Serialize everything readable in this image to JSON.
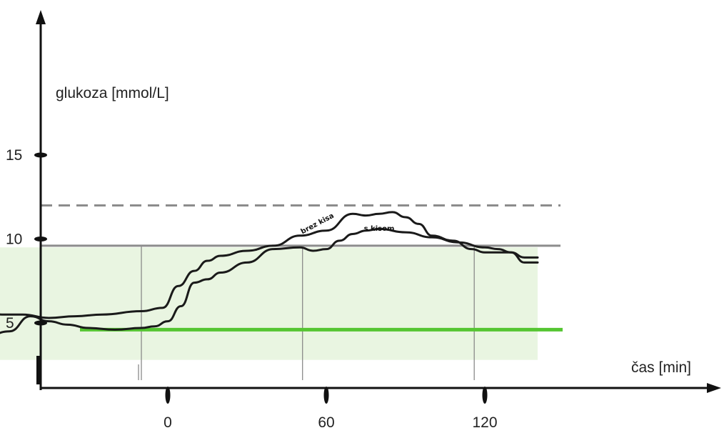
{
  "chart_data": {
    "type": "line",
    "ylabel": "glukoza [mmol/L]",
    "xlabel": "čas [min]",
    "xlim": [
      -78,
      152
    ],
    "ylim": [
      0,
      20
    ],
    "y_ticks": [
      5,
      10,
      15
    ],
    "x_ticks": [
      0,
      60,
      120
    ],
    "reference_lines": [
      {
        "y": 12,
        "style": "dashed",
        "color": "#8c8c8c"
      },
      {
        "y": 9.6,
        "style": "solid",
        "color": "#8c8c8c"
      },
      {
        "y": 4.6,
        "style": "solid",
        "color": "#55c532"
      }
    ],
    "shaded_band": {
      "y": [
        2.8,
        9.5
      ],
      "x": [
        -75,
        140
      ],
      "color": "#e9f5e1"
    },
    "vertical_guides": [
      -10,
      51,
      116
    ],
    "series": [
      {
        "name": "brez kisa",
        "x": [
          -75,
          -70,
          -62,
          -55,
          -45,
          -35,
          -25,
          -10,
          -2,
          4,
          10,
          15,
          20,
          30,
          40,
          50,
          60,
          70,
          75,
          80,
          85,
          90,
          95,
          100,
          108,
          115,
          120,
          126,
          130,
          135,
          140
        ],
        "y": [
          5.4,
          5.6,
          5.5,
          5.5,
          5.3,
          5.4,
          5.5,
          5.7,
          5.9,
          7.2,
          8.1,
          8.7,
          9.0,
          9.3,
          9.6,
          10.2,
          10.5,
          11.5,
          11.4,
          11.5,
          11.6,
          11.3,
          10.9,
          10.2,
          9.9,
          9.4,
          9.2,
          9.2,
          9.2,
          8.6,
          8.6
        ]
      },
      {
        "name": "s kisom",
        "x": [
          -75,
          -70,
          -60,
          -52,
          -45,
          -38,
          -30,
          -20,
          -10,
          -5,
          0,
          5,
          10,
          15,
          20,
          30,
          40,
          50,
          55,
          60,
          65,
          70,
          75,
          80,
          90,
          100,
          110,
          120,
          125,
          130,
          135,
          140
        ],
        "y": [
          4.1,
          4.1,
          4.5,
          5.4,
          5.1,
          4.9,
          4.7,
          4.6,
          4.7,
          4.8,
          5.1,
          6.0,
          7.4,
          7.6,
          8.0,
          8.6,
          9.4,
          9.5,
          9.3,
          9.4,
          9.9,
          10.3,
          10.5,
          10.6,
          10.4,
          10.1,
          9.8,
          9.5,
          9.4,
          9.2,
          8.9,
          8.9
        ]
      }
    ],
    "annotations": [
      {
        "text": "brez kisa",
        "x": 57,
        "y": 10.8
      },
      {
        "text": "s kisom",
        "x": 80,
        "y": 10.5
      }
    ]
  }
}
